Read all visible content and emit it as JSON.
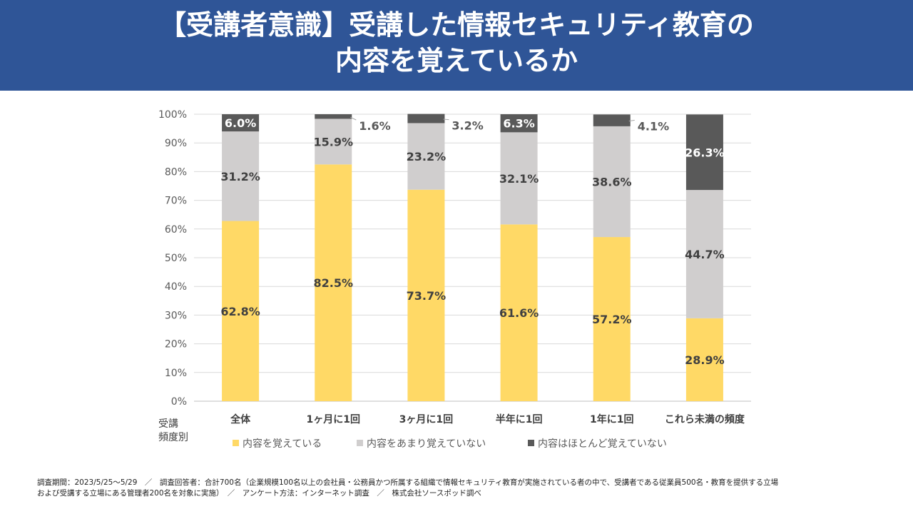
{
  "title": {
    "line1": "【受講者意識】受講した情報セキュリティ教育の",
    "line2": "内容を覚えているか"
  },
  "chart_data": {
    "type": "bar",
    "stacked": true,
    "categories": [
      "全体",
      "1ヶ月に1回",
      "3ヶ月に1回",
      "半年に1回",
      "1年に1回",
      "これら未満の頻度"
    ],
    "series": [
      {
        "name": "内容を覚えている",
        "color": "#ffd966",
        "values": [
          62.8,
          82.5,
          73.7,
          61.6,
          57.2,
          28.9
        ],
        "labels": [
          "62.8%",
          "82.5%",
          "73.7%",
          "61.6%",
          "57.2%",
          "28.9%"
        ]
      },
      {
        "name": "内容をあまり覚えていない",
        "color": "#d0cece",
        "values": [
          31.2,
          15.9,
          23.2,
          32.1,
          38.6,
          44.7
        ],
        "labels": [
          "31.2%",
          "15.9%",
          "23.2%",
          "32.1%",
          "38.6%",
          "44.7%"
        ]
      },
      {
        "name": "内容はほとんど覚えていない",
        "color": "#595959",
        "values": [
          6.0,
          1.6,
          3.2,
          6.3,
          4.1,
          26.3
        ],
        "labels": [
          "6.0%",
          "1.6%",
          "3.2%",
          "6.3%",
          "4.1%",
          "26.3%"
        ]
      }
    ],
    "y_ticks": [
      "0%",
      "10%",
      "20%",
      "30%",
      "40%",
      "50%",
      "60%",
      "70%",
      "80%",
      "90%",
      "100%"
    ],
    "ylim": [
      0,
      100
    ],
    "x_axis_name_line1": "受講",
    "x_axis_name_line2": "頻度別",
    "legend_position": "bottom",
    "grid": true
  },
  "footer": {
    "line1": "調査期間：2023/5/25〜5/29　／　調査回答者：合計700名（企業規模100名以上の会社員・公務員かつ所属する組織で情報セキュリティ教育が実施されている者の中で、受講者である従業員500名・教育を提供する立場",
    "line2": "および受講する立場にある管理者200名を対象に実施）　／　アンケート方法：インターネット調査　／　株式会社ソースポッド調べ"
  }
}
